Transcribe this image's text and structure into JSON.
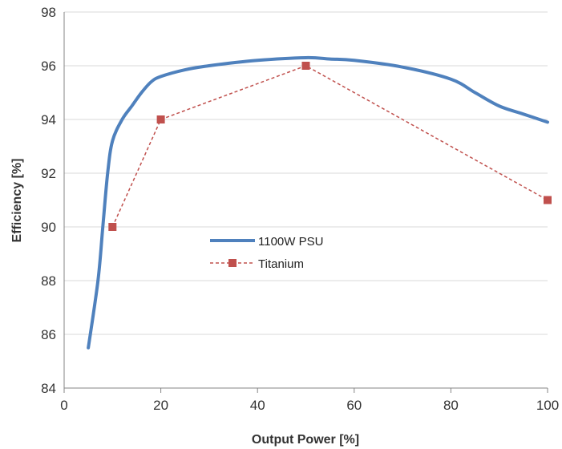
{
  "chart_data": {
    "type": "line",
    "title": "",
    "xlabel": "Output Power [%]",
    "ylabel": "Efficiency [%]",
    "xlim": [
      0,
      100
    ],
    "ylim": [
      84,
      98
    ],
    "xticks": [
      0,
      20,
      40,
      60,
      80,
      100
    ],
    "yticks": [
      84,
      86,
      88,
      90,
      92,
      94,
      96,
      98
    ],
    "xtick_labels": [
      "0",
      "20",
      "40",
      "60",
      "80",
      "100"
    ],
    "ytick_labels": [
      "84",
      "86",
      "88",
      "90",
      "92",
      "94",
      "96",
      "98"
    ],
    "grid": "horizontal",
    "legend_position": "center",
    "series": [
      {
        "name": "1100W PSU",
        "style": "solid-smooth",
        "color": "#4f81bd",
        "x": [
          5,
          7,
          8,
          9,
          10,
          12,
          14,
          16,
          18,
          20,
          25,
          30,
          40,
          50,
          55,
          60,
          70,
          80,
          85,
          90,
          95,
          100
        ],
        "y": [
          85.5,
          88.0,
          90.0,
          92.0,
          93.2,
          94.0,
          94.5,
          95.0,
          95.4,
          95.6,
          95.85,
          96.0,
          96.2,
          96.3,
          96.25,
          96.2,
          95.95,
          95.5,
          95.0,
          94.5,
          94.2,
          93.9
        ]
      },
      {
        "name": "Titanium",
        "style": "dashed-markers",
        "color": "#c0504d",
        "x": [
          10,
          20,
          50,
          100
        ],
        "y": [
          90,
          94,
          96,
          91
        ]
      }
    ]
  }
}
